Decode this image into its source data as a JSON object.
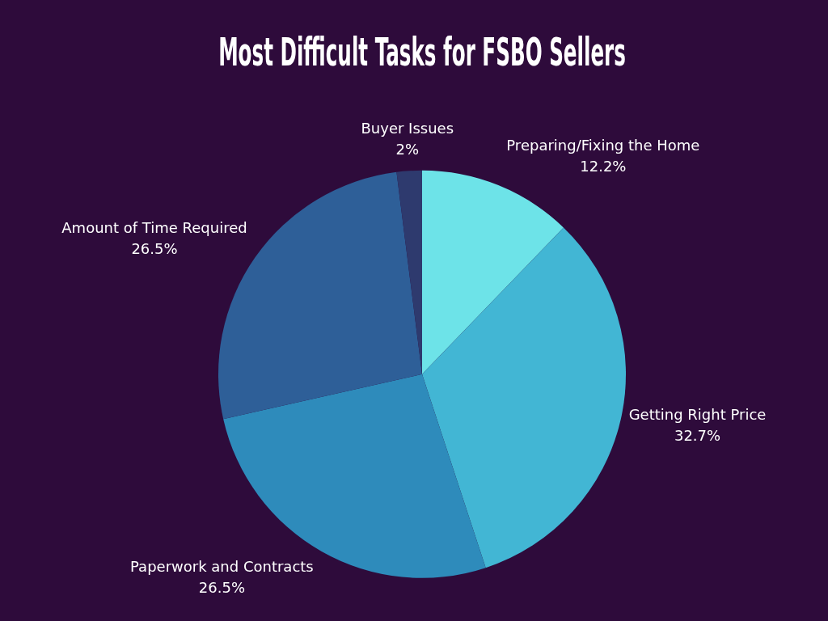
{
  "chart_data": {
    "type": "pie",
    "title": "Most Difficult Tasks for FSBO Sellers",
    "categories": [
      "Preparing/Fixing the Home",
      "Getting Right Price",
      "Paperwork and Contracts",
      "Amount of Time Required",
      "Buyer Issues"
    ],
    "values": [
      12.2,
      32.7,
      26.5,
      26.5,
      2
    ],
    "colors": [
      "#6de3e8",
      "#42b6d4",
      "#2e8bbb",
      "#2e5f98",
      "#2e3a6e"
    ],
    "value_labels": [
      "12.2%",
      "32.7%",
      "26.5%",
      "26.5%",
      "2%"
    ],
    "legend": false
  }
}
